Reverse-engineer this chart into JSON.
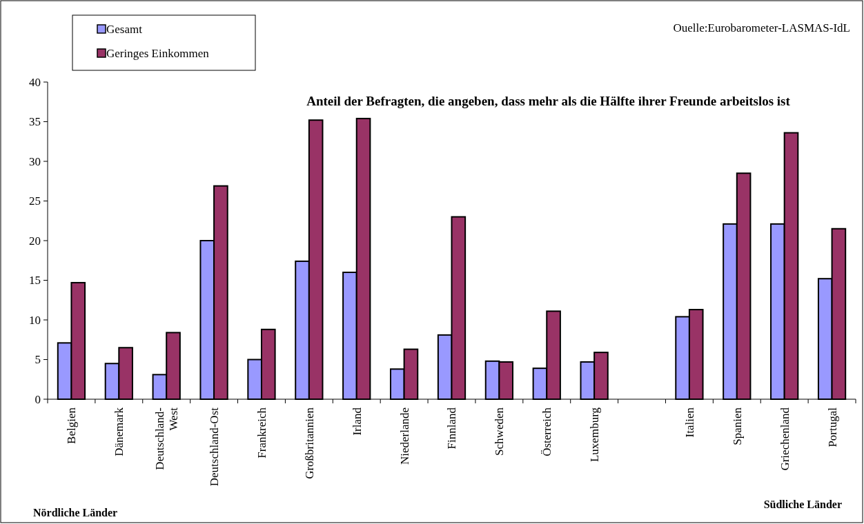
{
  "chart_data": {
    "type": "bar",
    "title": "Anteil der Befragten, die angeben, dass mehr als die Hälfte ihrer Freunde arbeitslos ist",
    "categories": [
      "Belgien",
      "Dänemark",
      "Deutschland-West",
      "Deutschland-Ost",
      "Frankreich",
      "Großbritannien",
      "Irland",
      "Niederlande",
      "Finnland",
      "Schweden",
      "Österreich",
      "Luxemburg",
      null,
      "Italien",
      "Spanien",
      "Griechenland",
      "Portugal"
    ],
    "series": [
      {
        "name": "Gesamt",
        "color": "#9999ff",
        "values": [
          7.1,
          4.5,
          3.1,
          20.0,
          5.0,
          17.4,
          16.0,
          3.8,
          8.1,
          4.8,
          3.9,
          4.7,
          null,
          10.4,
          22.1,
          22.1,
          15.2
        ]
      },
      {
        "name": "Geringes Einkommen",
        "color": "#993366",
        "values": [
          14.7,
          6.5,
          8.4,
          26.9,
          8.8,
          35.2,
          35.4,
          6.3,
          23.0,
          4.7,
          11.1,
          5.9,
          null,
          11.3,
          28.5,
          33.6,
          21.5
        ]
      }
    ],
    "ylim": [
      0,
      40
    ],
    "yticks": [
      0,
      5,
      10,
      15,
      20,
      25,
      30,
      35,
      40
    ],
    "grid": false,
    "legend": "top left",
    "annotations": [
      "Ouelle:Eurobarometer-LASMAS-IdL",
      "Nördliche Länder",
      "Südliche Länder"
    ]
  }
}
